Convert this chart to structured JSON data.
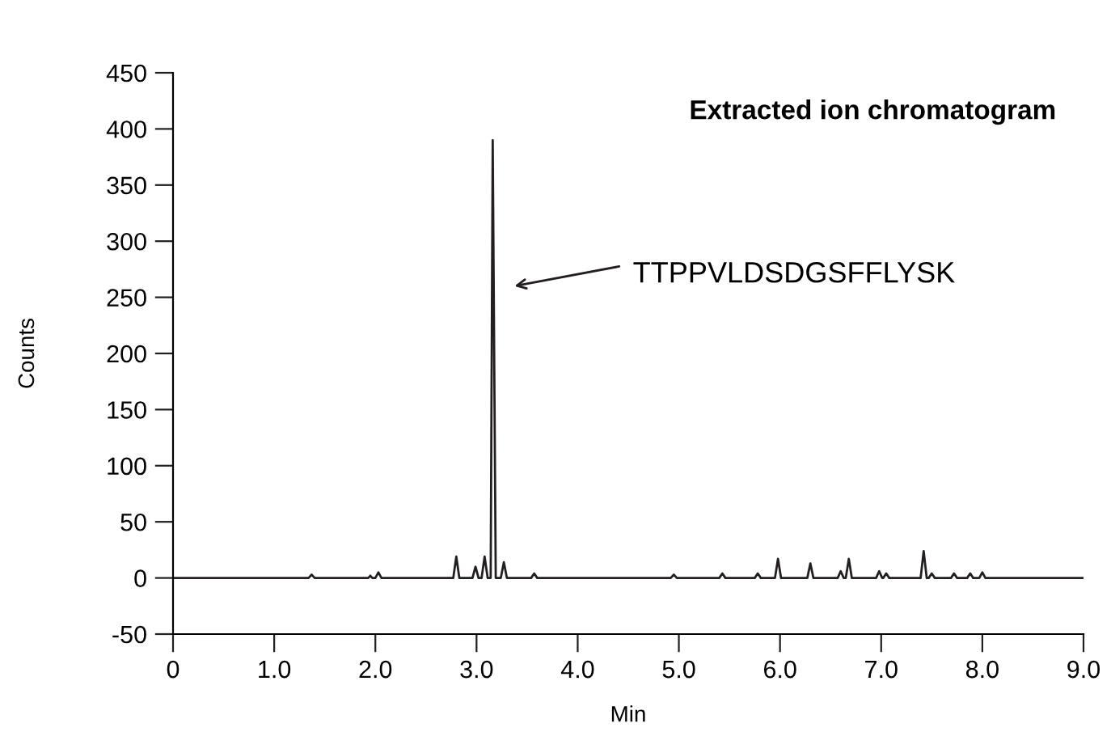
{
  "chart_data": {
    "type": "line",
    "title": "Extracted ion chromatogram",
    "xlabel": "Min",
    "ylabel": "Counts",
    "x": [
      0,
      1.34,
      1.37,
      1.4,
      1.93,
      1.95,
      1.97,
      2.0,
      2.03,
      2.06,
      2.77,
      2.8,
      2.83,
      2.96,
      2.99,
      3.02,
      3.05,
      3.08,
      3.11,
      3.14,
      3.16,
      3.19,
      3.24,
      3.27,
      3.3,
      3.54,
      3.57,
      3.6,
      4.92,
      4.95,
      4.98,
      5.4,
      5.43,
      5.46,
      5.75,
      5.78,
      5.81,
      5.95,
      5.98,
      6.01,
      6.27,
      6.3,
      6.33,
      6.57,
      6.6,
      6.63,
      6.65,
      6.68,
      6.71,
      6.95,
      6.98,
      7.01,
      7.02,
      7.05,
      7.08,
      7.39,
      7.42,
      7.45,
      7.47,
      7.5,
      7.53,
      7.69,
      7.72,
      7.75,
      7.85,
      7.88,
      7.91,
      7.97,
      8.0,
      8.03,
      9.0
    ],
    "values": [
      0,
      0,
      3,
      0,
      0,
      2,
      0,
      0,
      5,
      0,
      0,
      19,
      0,
      0,
      10,
      0,
      0,
      19,
      0,
      0,
      390,
      0,
      0,
      14,
      0,
      0,
      4,
      0,
      0,
      3,
      0,
      0,
      4,
      0,
      0,
      4,
      0,
      0,
      17,
      0,
      0,
      13,
      0,
      0,
      6,
      0,
      0,
      17,
      0,
      0,
      6,
      0,
      0,
      4,
      0,
      0,
      24,
      0,
      0,
      4,
      0,
      0,
      4,
      0,
      0,
      4,
      0,
      0,
      5,
      0,
      0
    ],
    "color": "#231f20",
    "annotations": [
      "TTPPVLDSDGSFFLYSK"
    ],
    "xlim": [
      0,
      9
    ],
    "ylim": [
      -50,
      450
    ],
    "xticks": [
      0,
      {
        "value": 1,
        "label": "1.0"
      },
      {
        "value": 2,
        "label": "2.0"
      },
      {
        "value": 3,
        "label": "3.0"
      },
      {
        "value": 4,
        "label": "4.0"
      },
      {
        "value": 5,
        "label": "5.0"
      },
      {
        "value": 6,
        "label": "6.0"
      },
      {
        "value": 7,
        "label": "7.0"
      },
      {
        "value": 8,
        "label": "8.0"
      },
      {
        "value": 9,
        "label": "9.0"
      }
    ],
    "yticks": [
      -50,
      0,
      50,
      100,
      150,
      200,
      250,
      300,
      350,
      400,
      450
    ],
    "grid": false,
    "legend": false,
    "marker": "none",
    "line_style": "solid"
  }
}
